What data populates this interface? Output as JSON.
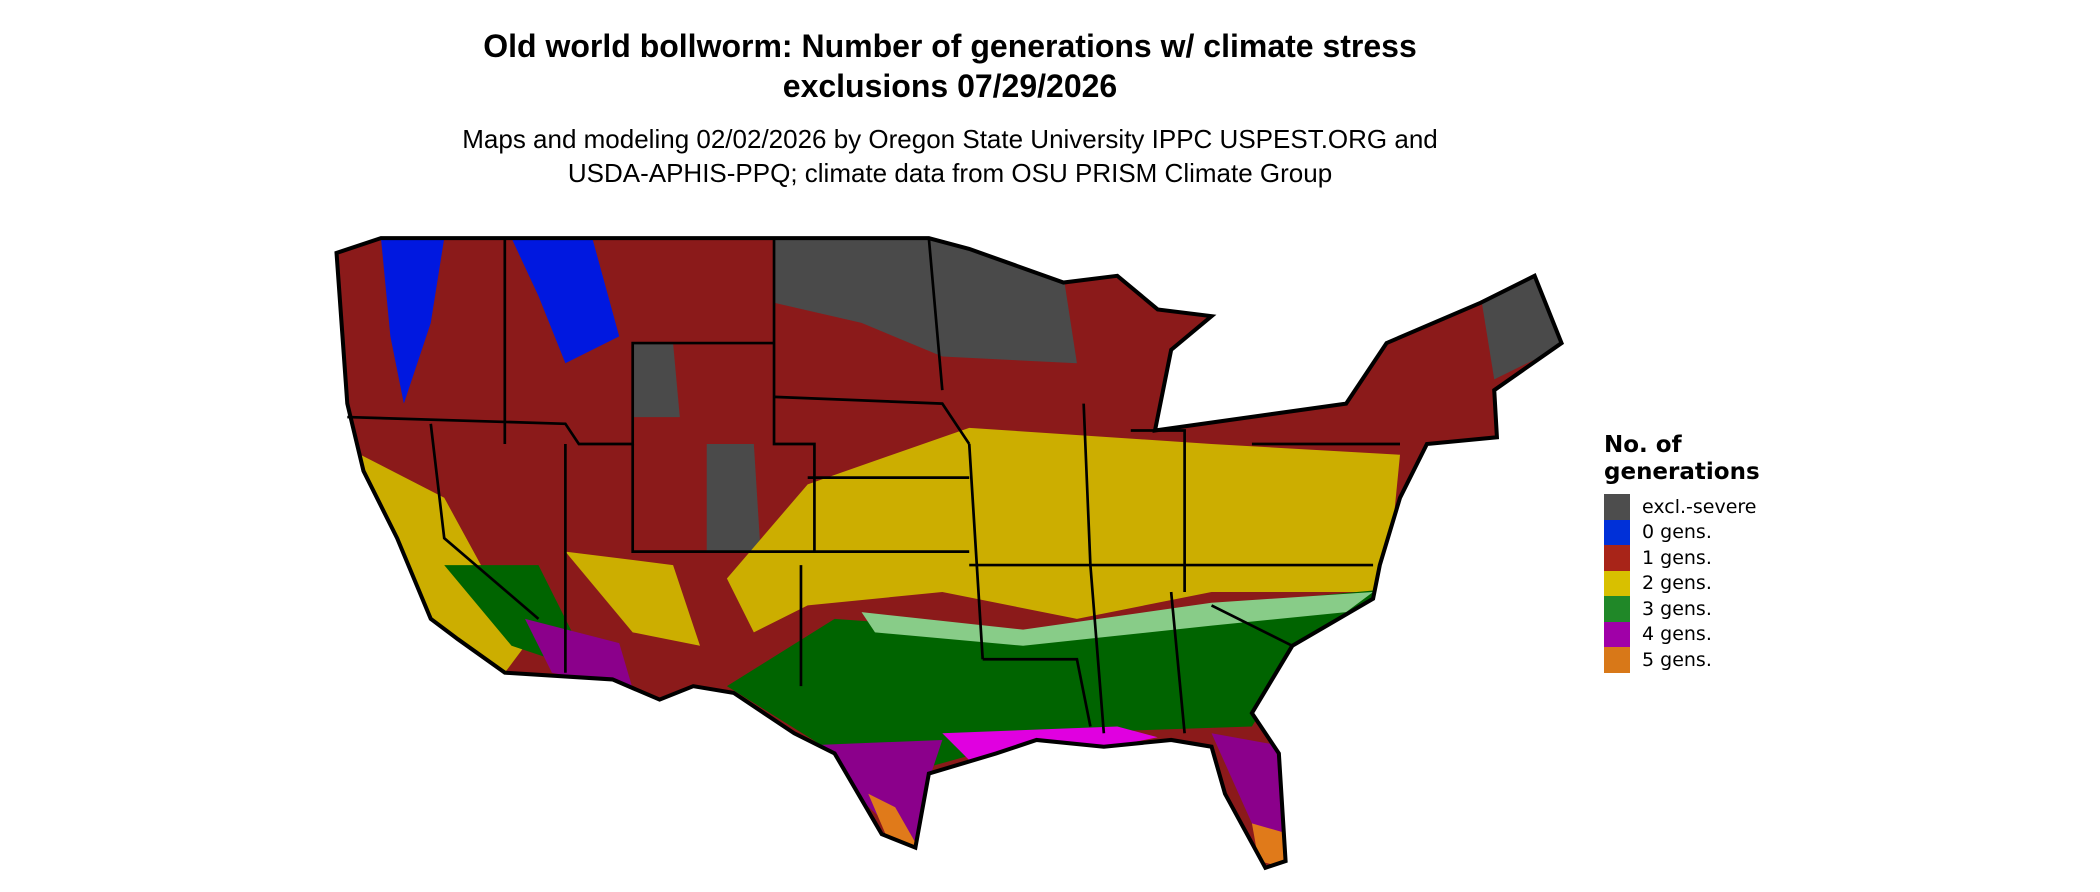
{
  "title_line1": "Old world bollworm: Number of generations w/ climate stress",
  "title_line2": "exclusions 07/29/2026",
  "subtitle_line1": "Maps and modeling 02/02/2026 by Oregon State University IPPC USPEST.ORG and",
  "subtitle_line2": "USDA-APHIS-PPQ; climate data from OSU PRISM Climate Group",
  "legend": {
    "title_line1": "No. of",
    "title_line2": "generations",
    "items": [
      {
        "label": "excl.-severe",
        "color": "#4d4d4d"
      },
      {
        "label": "0 gens.",
        "color": "#0030d8"
      },
      {
        "label": "1 gens.",
        "color": "#a82418"
      },
      {
        "label": "2 gens.",
        "color": "#d8c000"
      },
      {
        "label": "3 gens.",
        "color": "#208828"
      },
      {
        "label": "4 gens.",
        "color": "#a000a8"
      },
      {
        "label": "5 gens.",
        "color": "#d87818"
      }
    ]
  },
  "map_colors": {
    "excl": "#4a4a4a",
    "zero": "#0018e0",
    "one": "#8b1a1a",
    "two": "#ccae00",
    "three": "#006400",
    "three_light": "#88cc88",
    "four": "#8b008b",
    "four_bright": "#e000e0",
    "five": "#e07a1a"
  }
}
